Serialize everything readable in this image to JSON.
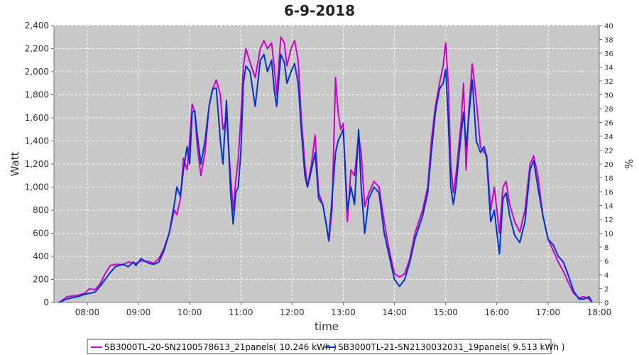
{
  "chart_data": {
    "type": "line",
    "title": "6-9-2018",
    "xlabel": "time",
    "ylabel": "Watt",
    "y2label": "%",
    "xlim": [
      7.35,
      18.0
    ],
    "ylim": [
      0,
      2400
    ],
    "y2lim": [
      0,
      40
    ],
    "x_ticks": [
      {
        "value": 8,
        "label": "08:00"
      },
      {
        "value": 9,
        "label": "09:00"
      },
      {
        "value": 10,
        "label": "10:00"
      },
      {
        "value": 11,
        "label": "11:00"
      },
      {
        "value": 12,
        "label": "12:00"
      },
      {
        "value": 13,
        "label": "13:00"
      },
      {
        "value": 14,
        "label": "14:00"
      },
      {
        "value": 15,
        "label": "15:00"
      },
      {
        "value": 16,
        "label": "16:00"
      },
      {
        "value": 17,
        "label": "17:00"
      },
      {
        "value": 18,
        "label": "18:00"
      }
    ],
    "y_ticks": [
      {
        "value": 0,
        "label": "0"
      },
      {
        "value": 200,
        "label": "200"
      },
      {
        "value": 400,
        "label": "400"
      },
      {
        "value": 600,
        "label": "600"
      },
      {
        "value": 800,
        "label": "800"
      },
      {
        "value": 1000,
        "label": "1,000"
      },
      {
        "value": 1200,
        "label": "1,200"
      },
      {
        "value": 1400,
        "label": "1,400"
      },
      {
        "value": 1600,
        "label": "1,600"
      },
      {
        "value": 1800,
        "label": "1,800"
      },
      {
        "value": 2000,
        "label": "2,000"
      },
      {
        "value": 2200,
        "label": "2,200"
      },
      {
        "value": 2400,
        "label": "2,400"
      }
    ],
    "y2_ticks": [
      {
        "value": 0,
        "label": "0"
      },
      {
        "value": 2,
        "label": "2"
      },
      {
        "value": 4,
        "label": "4"
      },
      {
        "value": 6,
        "label": "6"
      },
      {
        "value": 8,
        "label": "8"
      },
      {
        "value": 10,
        "label": "10"
      },
      {
        "value": 12,
        "label": "12"
      },
      {
        "value": 14,
        "label": "14"
      },
      {
        "value": 16,
        "label": "16"
      },
      {
        "value": 18,
        "label": "18"
      },
      {
        "value": 20,
        "label": "20"
      },
      {
        "value": 22,
        "label": "22"
      },
      {
        "value": 24,
        "label": "24"
      },
      {
        "value": 26,
        "label": "26"
      },
      {
        "value": 28,
        "label": "28"
      },
      {
        "value": 30,
        "label": "30"
      },
      {
        "value": 32,
        "label": "32"
      },
      {
        "value": 34,
        "label": "34"
      },
      {
        "value": 36,
        "label": "36"
      },
      {
        "value": 38,
        "label": "38"
      },
      {
        "value": 40,
        "label": "40"
      }
    ],
    "grid": true,
    "legend_position": "bottom",
    "plot_background": "#c8c8c8",
    "series": [
      {
        "name": "SB3000TL-20-SN2100578613_21panels( 10.246 kWh )",
        "color": "#cc00cc",
        "points": [
          [
            7.45,
            0
          ],
          [
            7.6,
            50
          ],
          [
            7.8,
            60
          ],
          [
            7.95,
            80
          ],
          [
            8.05,
            120
          ],
          [
            8.15,
            110
          ],
          [
            8.25,
            160
          ],
          [
            8.35,
            250
          ],
          [
            8.45,
            320
          ],
          [
            8.55,
            330
          ],
          [
            8.7,
            330
          ],
          [
            8.8,
            350
          ],
          [
            8.95,
            340
          ],
          [
            9.05,
            360
          ],
          [
            9.2,
            355
          ],
          [
            9.3,
            340
          ],
          [
            9.4,
            380
          ],
          [
            9.5,
            470
          ],
          [
            9.6,
            600
          ],
          [
            9.7,
            800
          ],
          [
            9.75,
            760
          ],
          [
            9.82,
            900
          ],
          [
            9.88,
            1250
          ],
          [
            9.95,
            1150
          ],
          [
            10.0,
            1400
          ],
          [
            10.05,
            1720
          ],
          [
            10.1,
            1650
          ],
          [
            10.15,
            1350
          ],
          [
            10.22,
            1100
          ],
          [
            10.3,
            1300
          ],
          [
            10.38,
            1700
          ],
          [
            10.45,
            1850
          ],
          [
            10.52,
            1930
          ],
          [
            10.6,
            1800
          ],
          [
            10.65,
            1500
          ],
          [
            10.72,
            1600
          ],
          [
            10.8,
            1100
          ],
          [
            10.85,
            800
          ],
          [
            10.9,
            1050
          ],
          [
            10.95,
            1250
          ],
          [
            11.0,
            1600
          ],
          [
            11.05,
            2050
          ],
          [
            11.1,
            2200
          ],
          [
            11.18,
            2080
          ],
          [
            11.28,
            1950
          ],
          [
            11.38,
            2200
          ],
          [
            11.45,
            2270
          ],
          [
            11.52,
            2200
          ],
          [
            11.6,
            2250
          ],
          [
            11.65,
            2050
          ],
          [
            11.7,
            1800
          ],
          [
            11.78,
            2300
          ],
          [
            11.85,
            2250
          ],
          [
            11.9,
            2050
          ],
          [
            11.98,
            2200
          ],
          [
            12.05,
            2270
          ],
          [
            12.12,
            2100
          ],
          [
            12.18,
            1600
          ],
          [
            12.25,
            1200
          ],
          [
            12.3,
            1000
          ],
          [
            12.38,
            1200
          ],
          [
            12.45,
            1450
          ],
          [
            12.52,
            950
          ],
          [
            12.6,
            850
          ],
          [
            12.66,
            700
          ],
          [
            12.72,
            530
          ],
          [
            12.78,
            800
          ],
          [
            12.85,
            1950
          ],
          [
            12.9,
            1650
          ],
          [
            12.95,
            1500
          ],
          [
            13.0,
            1550
          ],
          [
            13.08,
            700
          ],
          [
            13.15,
            1150
          ],
          [
            13.22,
            1100
          ],
          [
            13.3,
            1450
          ],
          [
            13.35,
            1300
          ],
          [
            13.42,
            830
          ],
          [
            13.5,
            950
          ],
          [
            13.6,
            1050
          ],
          [
            13.7,
            1000
          ],
          [
            13.8,
            700
          ],
          [
            13.9,
            450
          ],
          [
            14.0,
            250
          ],
          [
            14.1,
            220
          ],
          [
            14.2,
            250
          ],
          [
            14.3,
            380
          ],
          [
            14.4,
            600
          ],
          [
            14.55,
            800
          ],
          [
            14.65,
            1000
          ],
          [
            14.72,
            1400
          ],
          [
            14.8,
            1700
          ],
          [
            14.88,
            1900
          ],
          [
            14.95,
            2050
          ],
          [
            15.0,
            2250
          ],
          [
            15.05,
            1900
          ],
          [
            15.1,
            1200
          ],
          [
            15.15,
            950
          ],
          [
            15.2,
            1100
          ],
          [
            15.3,
            1550
          ],
          [
            15.35,
            1900
          ],
          [
            15.4,
            1150
          ],
          [
            15.45,
            1650
          ],
          [
            15.52,
            2070
          ],
          [
            15.6,
            1750
          ],
          [
            15.68,
            1350
          ],
          [
            15.75,
            1300
          ],
          [
            15.8,
            1280
          ],
          [
            15.88,
            800
          ],
          [
            15.95,
            1000
          ],
          [
            16.05,
            600
          ],
          [
            16.12,
            1000
          ],
          [
            16.18,
            1050
          ],
          [
            16.25,
            850
          ],
          [
            16.35,
            700
          ],
          [
            16.45,
            610
          ],
          [
            16.55,
            800
          ],
          [
            16.65,
            1200
          ],
          [
            16.72,
            1270
          ],
          [
            16.8,
            1100
          ],
          [
            16.9,
            750
          ],
          [
            17.0,
            550
          ],
          [
            17.1,
            450
          ],
          [
            17.2,
            350
          ],
          [
            17.3,
            270
          ],
          [
            17.4,
            170
          ],
          [
            17.5,
            80
          ],
          [
            17.6,
            40
          ],
          [
            17.7,
            50
          ],
          [
            17.8,
            30
          ],
          [
            17.85,
            5
          ]
        ]
      },
      {
        "name": "SB3000TL-21-SN2130032031_19panels( 9.513 kWh )",
        "color": "#0033cc",
        "points": [
          [
            7.45,
            0
          ],
          [
            7.6,
            30
          ],
          [
            7.8,
            50
          ],
          [
            7.95,
            70
          ],
          [
            8.05,
            80
          ],
          [
            8.15,
            90
          ],
          [
            8.25,
            140
          ],
          [
            8.35,
            200
          ],
          [
            8.45,
            260
          ],
          [
            8.55,
            310
          ],
          [
            8.7,
            330
          ],
          [
            8.8,
            310
          ],
          [
            8.9,
            350
          ],
          [
            8.95,
            320
          ],
          [
            9.05,
            380
          ],
          [
            9.2,
            340
          ],
          [
            9.3,
            330
          ],
          [
            9.4,
            350
          ],
          [
            9.5,
            450
          ],
          [
            9.6,
            600
          ],
          [
            9.7,
            850
          ],
          [
            9.75,
            1000
          ],
          [
            9.82,
            920
          ],
          [
            9.88,
            1150
          ],
          [
            9.95,
            1350
          ],
          [
            10.0,
            1200
          ],
          [
            10.05,
            1650
          ],
          [
            10.1,
            1660
          ],
          [
            10.15,
            1450
          ],
          [
            10.22,
            1200
          ],
          [
            10.3,
            1400
          ],
          [
            10.38,
            1700
          ],
          [
            10.45,
            1850
          ],
          [
            10.52,
            1860
          ],
          [
            10.6,
            1400
          ],
          [
            10.65,
            1200
          ],
          [
            10.72,
            1750
          ],
          [
            10.8,
            950
          ],
          [
            10.85,
            680
          ],
          [
            10.9,
            950
          ],
          [
            10.95,
            1000
          ],
          [
            11.0,
            1300
          ],
          [
            11.05,
            1900
          ],
          [
            11.1,
            2050
          ],
          [
            11.18,
            2000
          ],
          [
            11.28,
            1700
          ],
          [
            11.38,
            2100
          ],
          [
            11.45,
            2150
          ],
          [
            11.52,
            2000
          ],
          [
            11.6,
            2100
          ],
          [
            11.65,
            1850
          ],
          [
            11.7,
            1700
          ],
          [
            11.78,
            2150
          ],
          [
            11.85,
            2080
          ],
          [
            11.9,
            1900
          ],
          [
            11.98,
            2000
          ],
          [
            12.05,
            2070
          ],
          [
            12.12,
            1900
          ],
          [
            12.18,
            1500
          ],
          [
            12.25,
            1100
          ],
          [
            12.3,
            1000
          ],
          [
            12.38,
            1150
          ],
          [
            12.45,
            1300
          ],
          [
            12.52,
            900
          ],
          [
            12.6,
            850
          ],
          [
            12.66,
            700
          ],
          [
            12.72,
            540
          ],
          [
            12.78,
            900
          ],
          [
            12.85,
            1300
          ],
          [
            12.9,
            1400
          ],
          [
            12.95,
            1450
          ],
          [
            13.0,
            1500
          ],
          [
            13.08,
            800
          ],
          [
            13.15,
            1000
          ],
          [
            13.22,
            850
          ],
          [
            13.3,
            1500
          ],
          [
            13.35,
            1000
          ],
          [
            13.42,
            600
          ],
          [
            13.5,
            900
          ],
          [
            13.6,
            1000
          ],
          [
            13.7,
            950
          ],
          [
            13.8,
            600
          ],
          [
            13.9,
            400
          ],
          [
            14.0,
            200
          ],
          [
            14.1,
            140
          ],
          [
            14.2,
            200
          ],
          [
            14.3,
            350
          ],
          [
            14.4,
            550
          ],
          [
            14.55,
            750
          ],
          [
            14.65,
            950
          ],
          [
            14.72,
            1300
          ],
          [
            14.8,
            1650
          ],
          [
            14.88,
            1850
          ],
          [
            14.95,
            1900
          ],
          [
            15.0,
            2020
          ],
          [
            15.05,
            1600
          ],
          [
            15.1,
            1000
          ],
          [
            15.15,
            850
          ],
          [
            15.2,
            1000
          ],
          [
            15.3,
            1450
          ],
          [
            15.35,
            1650
          ],
          [
            15.4,
            1350
          ],
          [
            15.45,
            1600
          ],
          [
            15.52,
            1930
          ],
          [
            15.6,
            1400
          ],
          [
            15.68,
            1300
          ],
          [
            15.75,
            1350
          ],
          [
            15.8,
            1250
          ],
          [
            15.88,
            700
          ],
          [
            15.95,
            800
          ],
          [
            16.05,
            420
          ],
          [
            16.12,
            900
          ],
          [
            16.18,
            950
          ],
          [
            16.25,
            750
          ],
          [
            16.35,
            580
          ],
          [
            16.45,
            520
          ],
          [
            16.55,
            700
          ],
          [
            16.65,
            1150
          ],
          [
            16.72,
            1230
          ],
          [
            16.8,
            1000
          ],
          [
            16.9,
            750
          ],
          [
            17.0,
            550
          ],
          [
            17.1,
            500
          ],
          [
            17.2,
            400
          ],
          [
            17.3,
            350
          ],
          [
            17.4,
            230
          ],
          [
            17.5,
            100
          ],
          [
            17.6,
            30
          ],
          [
            17.7,
            30
          ],
          [
            17.8,
            50
          ],
          [
            17.85,
            10
          ]
        ]
      }
    ]
  }
}
